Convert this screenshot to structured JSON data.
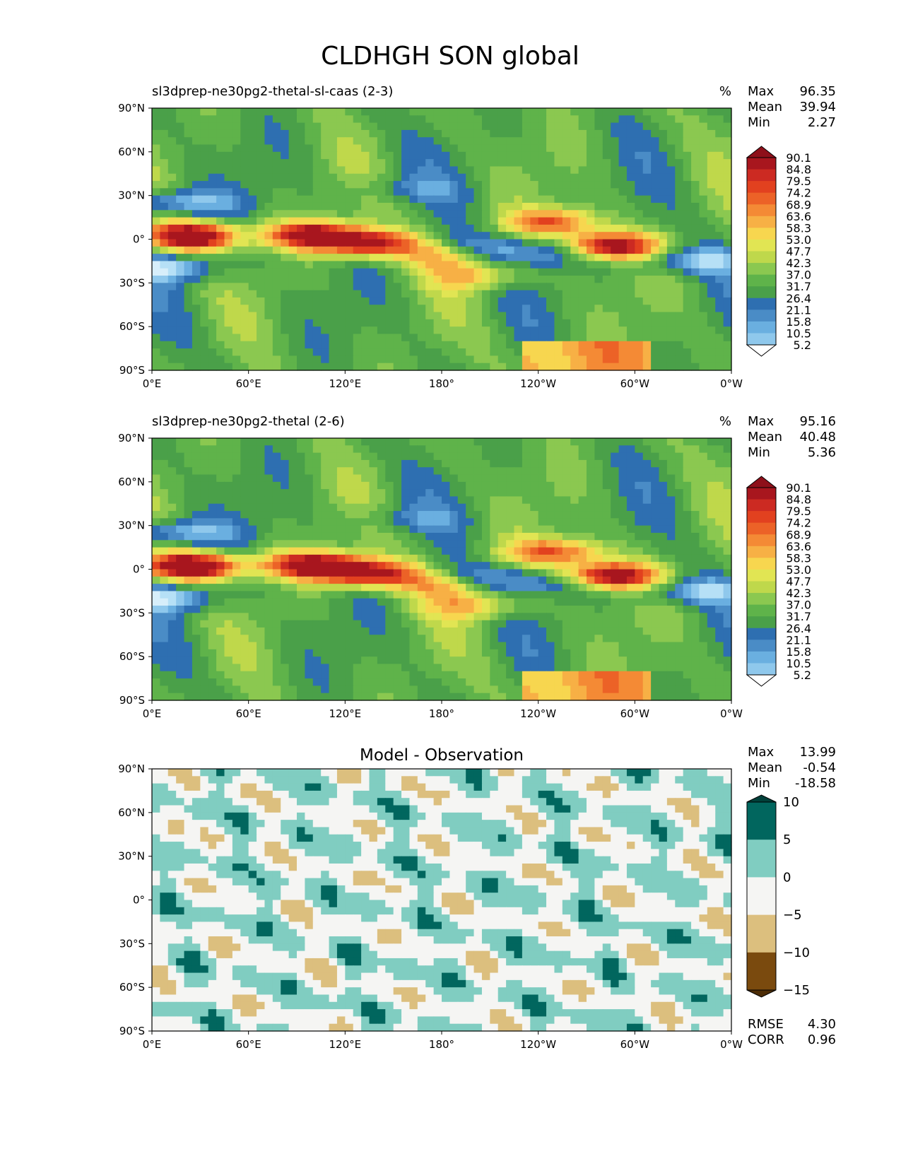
{
  "figure": {
    "title": "CLDHGH SON global"
  },
  "axes": {
    "xticks": [
      "0°E",
      "60°E",
      "120°E",
      "180°",
      "120°W",
      "60°W",
      "0°W"
    ],
    "yticks": [
      "90°N",
      "60°N",
      "30°N",
      "0°",
      "30°S",
      "60°S",
      "90°S"
    ]
  },
  "colors": {
    "seq": [
      "#ffffff",
      "#d7eefa",
      "#b6e0f6",
      "#8fc8ec",
      "#6aafe0",
      "#4a8cc6",
      "#2e6fb1",
      "#4aa049",
      "#5fb34a",
      "#8bc850",
      "#bfd84b",
      "#e1e553",
      "#f7d64f",
      "#f7b045",
      "#f48a35",
      "#ec6227",
      "#e2411f",
      "#cc2a22",
      "#a8161e",
      "#8e101a"
    ],
    "diff": [
      "#7a4a0e",
      "#dcbf7e",
      "#f5f5f3",
      "#80cdc1",
      "#01665e"
    ]
  },
  "chart_data": [
    {
      "type": "heatmap",
      "title": "sl3dprep-ne30pg2-thetal-sl-caas (2-3)",
      "units": "%",
      "stats": [
        {
          "label": "Max",
          "value": "96.35"
        },
        {
          "label": "Mean",
          "value": "39.94"
        },
        {
          "label": "Min",
          "value": "2.27"
        }
      ],
      "colorbar_levels": [
        "90.1",
        "84.8",
        "79.5",
        "74.2",
        "68.9",
        "63.6",
        "58.3",
        "53.0",
        "47.7",
        "42.3",
        "37.0",
        "31.7",
        "26.4",
        "21.1",
        "15.8",
        "10.5",
        "5.2"
      ],
      "xlim": [
        0,
        360
      ],
      "ylim": [
        -90,
        90
      ]
    },
    {
      "type": "heatmap",
      "title": "sl3dprep-ne30pg2-thetal (2-6)",
      "units": "%",
      "stats": [
        {
          "label": "Max",
          "value": "95.16"
        },
        {
          "label": "Mean",
          "value": "40.48"
        },
        {
          "label": "Min",
          "value": "5.36"
        }
      ],
      "colorbar_levels": [
        "90.1",
        "84.8",
        "79.5",
        "74.2",
        "68.9",
        "63.6",
        "58.3",
        "53.0",
        "47.7",
        "42.3",
        "37.0",
        "31.7",
        "26.4",
        "21.1",
        "15.8",
        "10.5",
        "5.2"
      ],
      "xlim": [
        0,
        360
      ],
      "ylim": [
        -90,
        90
      ]
    },
    {
      "type": "heatmap",
      "title": "Model - Observation",
      "units": "",
      "stats": [
        {
          "label": "Max",
          "value": "13.99"
        },
        {
          "label": "Mean",
          "value": "-0.54"
        },
        {
          "label": "Min",
          "value": "-18.58"
        }
      ],
      "colorbar_levels": [
        "10",
        "5",
        "0",
        "−5",
        "−10",
        "−15"
      ],
      "footer_stats": [
        {
          "label": "RMSE",
          "value": "4.30"
        },
        {
          "label": "CORR",
          "value": "0.96"
        }
      ],
      "xlim": [
        0,
        360
      ],
      "ylim": [
        -90,
        90
      ]
    }
  ]
}
